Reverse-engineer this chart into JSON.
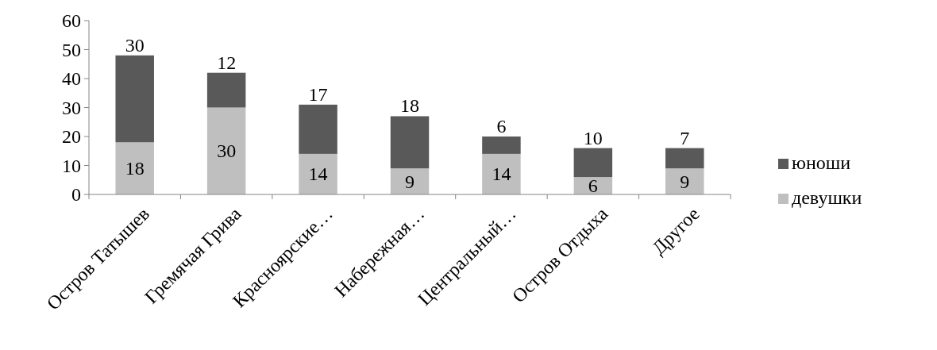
{
  "chart_data": {
    "type": "bar",
    "stacked": true,
    "categories": [
      "Остров Татышев",
      "Гремячая Грива",
      "Красноярские…",
      "Набережная…",
      "Центральный…",
      "Остров Отдыха",
      "Другое"
    ],
    "series": [
      {
        "name": "девушки",
        "color": "#bfbfbf",
        "values": [
          18,
          30,
          14,
          9,
          14,
          6,
          9
        ]
      },
      {
        "name": "юноши",
        "color": "#595959",
        "values": [
          30,
          12,
          17,
          18,
          6,
          10,
          7
        ]
      }
    ],
    "ylim": [
      0,
      60
    ],
    "yticks": [
      0,
      10,
      20,
      30,
      40,
      50,
      60
    ],
    "grid": false,
    "legend": "right",
    "data_labels": true
  }
}
